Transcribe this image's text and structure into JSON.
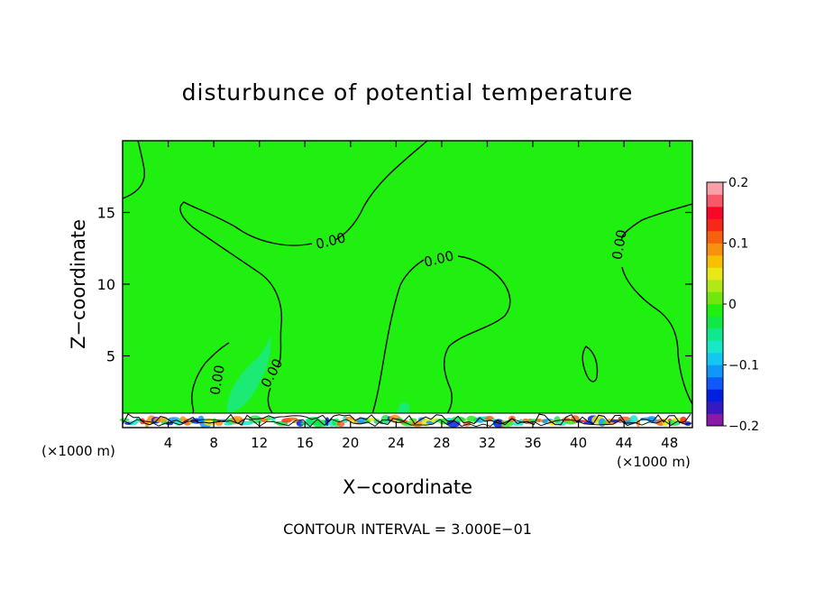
{
  "chart_data": {
    "type": "heatmap",
    "title": "disturbunce of potential temperature",
    "xlabel": "X−coordinate",
    "ylabel": "Z−coordinate",
    "x_unit_left": "(×1000 m)",
    "x_unit_right": "(×1000 m)",
    "footer": "CONTOUR INTERVAL = 3.000E−01",
    "xlim": [
      0,
      50
    ],
    "ylim": [
      0,
      20
    ],
    "x_ticks": [
      4,
      8,
      12,
      16,
      20,
      24,
      28,
      32,
      36,
      40,
      44,
      48
    ],
    "y_ticks": [
      5,
      10,
      15
    ],
    "contour_label": "0.00",
    "contour_interval": 0.3,
    "colorbar": {
      "min": -0.2,
      "max": 0.2,
      "tick_values": [
        0.2,
        0.1,
        0,
        -0.1,
        -0.2
      ],
      "tick_labels": [
        "0.2",
        "0.1",
        "0",
        "−0.1",
        "−0.2"
      ],
      "colors": [
        "#8a18a8",
        "#3818c0",
        "#0020e0",
        "#1058f8",
        "#1098f8",
        "#10c8f0",
        "#18e8c8",
        "#10e890",
        "#10e848",
        "#20f010",
        "#70e810",
        "#b0e818",
        "#e8e818",
        "#f8c000",
        "#f89010",
        "#f86010",
        "#f82818",
        "#f80828",
        "#f85868",
        "#f8a0a8"
      ]
    },
    "field_value": 0,
    "field_color": "#20f010"
  }
}
